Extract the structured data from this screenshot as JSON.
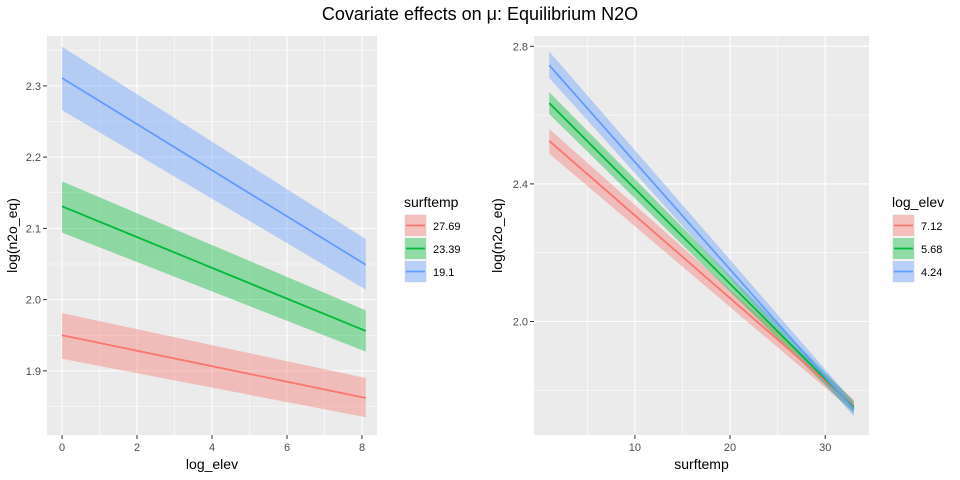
{
  "title": "Covariate effects on μ: Equilibrium N2O",
  "chart_data": [
    {
      "type": "line",
      "xlabel": "log_elev",
      "ylabel": "log(n2o_eq)",
      "xlim": [
        -0.4,
        8.4
      ],
      "ylim": [
        1.81,
        2.37
      ],
      "xticks": [
        0,
        2,
        4,
        6,
        8
      ],
      "yticks": [
        1.9,
        2.0,
        2.1,
        2.2,
        2.3
      ],
      "ytick_labels": [
        "1.9",
        "2.0",
        "2.1",
        "2.2",
        "2.3"
      ],
      "grid": true,
      "legend": {
        "title": "surftemp",
        "position": "right"
      },
      "series": [
        {
          "name": "27.69",
          "color": "#F8766D",
          "x": [
            0,
            8.1
          ],
          "y": [
            1.95,
            1.862
          ],
          "lower": [
            1.917,
            1.835
          ],
          "upper": [
            1.981,
            1.89
          ]
        },
        {
          "name": "23.39",
          "color": "#00BA38",
          "x": [
            0,
            8.1
          ],
          "y": [
            2.131,
            1.956
          ],
          "lower": [
            2.094,
            1.927
          ],
          "upper": [
            2.166,
            1.985
          ]
        },
        {
          "name": "19.1",
          "color": "#619CFF",
          "x": [
            0,
            8.1
          ],
          "y": [
            2.311,
            2.049
          ],
          "lower": [
            2.266,
            2.014
          ],
          "upper": [
            2.355,
            2.085
          ]
        }
      ]
    },
    {
      "type": "line",
      "xlabel": "surftemp",
      "ylabel": "log(n2o_eq)",
      "xlim": [
        -0.6,
        34.6
      ],
      "ylim": [
        1.67,
        2.83
      ],
      "xticks": [
        10,
        20,
        30
      ],
      "yticks": [
        2.0,
        2.4,
        2.8
      ],
      "ytick_labels": [
        "2.0",
        "2.4",
        "2.8"
      ],
      "grid": true,
      "legend": {
        "title": "log_elev",
        "position": "right"
      },
      "series": [
        {
          "name": "7.12",
          "color": "#F8766D",
          "x": [
            1,
            33
          ],
          "y": [
            2.525,
            1.755
          ],
          "lower": [
            2.488,
            1.737
          ],
          "upper": [
            2.56,
            1.773
          ]
        },
        {
          "name": "5.68",
          "color": "#00BA38",
          "x": [
            1,
            33
          ],
          "y": [
            2.635,
            1.75
          ],
          "lower": [
            2.603,
            1.733
          ],
          "upper": [
            2.667,
            1.768
          ]
        },
        {
          "name": "4.24",
          "color": "#619CFF",
          "x": [
            1,
            33
          ],
          "y": [
            2.745,
            1.745
          ],
          "lower": [
            2.708,
            1.725
          ],
          "upper": [
            2.785,
            1.765
          ]
        }
      ]
    }
  ]
}
